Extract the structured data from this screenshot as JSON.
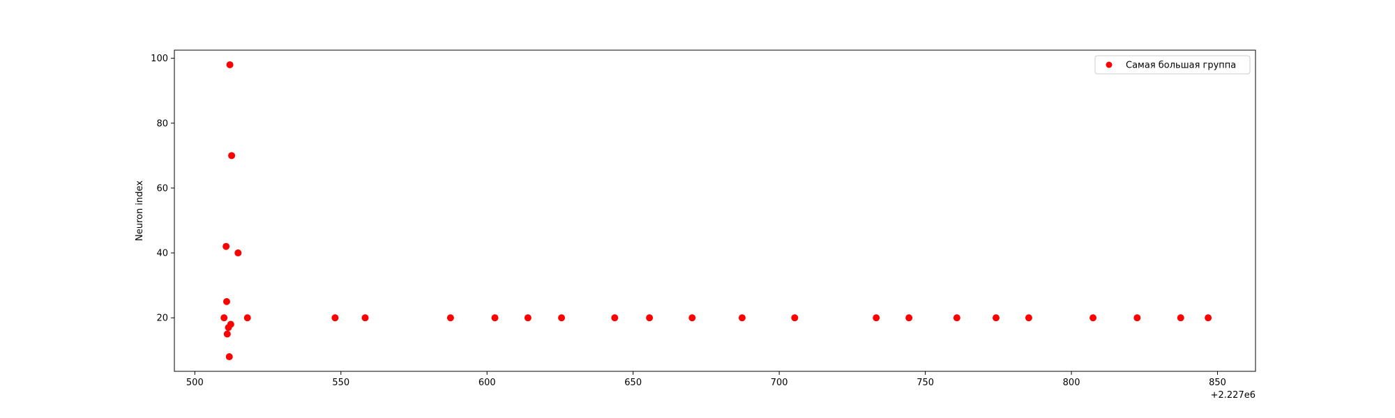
{
  "chart_data": {
    "type": "scatter",
    "title": "",
    "xlabel": "",
    "ylabel": "Neuron index",
    "x_offset_label": "+2.227e6",
    "xlim": [
      493,
      863
    ],
    "ylim": [
      3.5,
      102.5
    ],
    "xticks": [
      500,
      550,
      600,
      650,
      700,
      750,
      800,
      850
    ],
    "yticks": [
      20,
      40,
      60,
      80,
      100
    ],
    "grid": false,
    "legend_position": "top-right",
    "series": [
      {
        "name": "Самая большая группа",
        "color": "#ff0000",
        "points": [
          {
            "x": 510.0,
            "y": 20
          },
          {
            "x": 510.7,
            "y": 42
          },
          {
            "x": 510.9,
            "y": 25
          },
          {
            "x": 511.1,
            "y": 15
          },
          {
            "x": 511.5,
            "y": 17
          },
          {
            "x": 511.8,
            "y": 8
          },
          {
            "x": 512.0,
            "y": 98
          },
          {
            "x": 512.3,
            "y": 18
          },
          {
            "x": 512.6,
            "y": 70
          },
          {
            "x": 514.8,
            "y": 40
          },
          {
            "x": 518.0,
            "y": 20
          },
          {
            "x": 548.0,
            "y": 20
          },
          {
            "x": 558.3,
            "y": 20
          },
          {
            "x": 587.5,
            "y": 20
          },
          {
            "x": 602.7,
            "y": 20
          },
          {
            "x": 614.0,
            "y": 20
          },
          {
            "x": 625.5,
            "y": 20
          },
          {
            "x": 643.7,
            "y": 20
          },
          {
            "x": 655.6,
            "y": 20
          },
          {
            "x": 670.2,
            "y": 20
          },
          {
            "x": 687.3,
            "y": 20
          },
          {
            "x": 705.3,
            "y": 20
          },
          {
            "x": 733.2,
            "y": 20
          },
          {
            "x": 744.4,
            "y": 20
          },
          {
            "x": 760.8,
            "y": 20
          },
          {
            "x": 774.2,
            "y": 20
          },
          {
            "x": 785.4,
            "y": 20
          },
          {
            "x": 807.4,
            "y": 20
          },
          {
            "x": 822.5,
            "y": 20
          },
          {
            "x": 837.4,
            "y": 20
          },
          {
            "x": 846.8,
            "y": 20
          }
        ]
      }
    ]
  }
}
